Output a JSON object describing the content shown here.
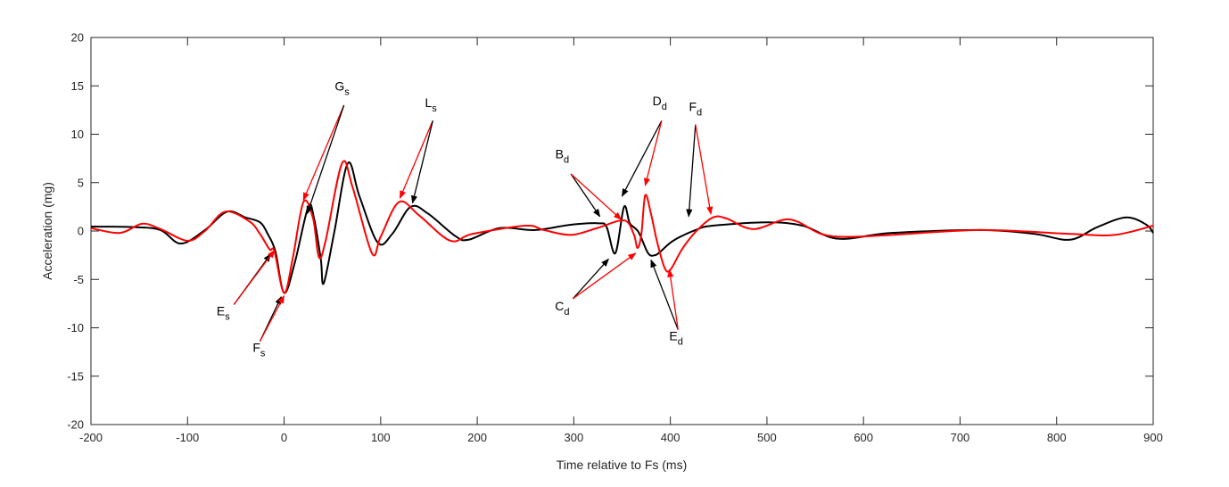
{
  "chart_data": {
    "type": "line",
    "title": "",
    "xlabel": "Time relative to Fs (ms)",
    "ylabel": "Acceleration (mg)",
    "xlim": [
      -200,
      900
    ],
    "ylim": [
      -20,
      20
    ],
    "xticks": [
      -200,
      -100,
      0,
      100,
      200,
      300,
      400,
      500,
      600,
      700,
      800,
      900
    ],
    "yticks": [
      -20,
      -15,
      -10,
      -5,
      0,
      5,
      10,
      15,
      20
    ],
    "grid": false,
    "series": [
      {
        "name": "black",
        "color": "#000000",
        "points": [
          [
            -200,
            0.46
          ],
          [
            -155,
            0.4
          ],
          [
            -128,
            0.1
          ],
          [
            -107,
            -1.3
          ],
          [
            -82,
            0.1
          ],
          [
            -59,
            2.0
          ],
          [
            -40,
            1.4
          ],
          [
            -25,
            0.9
          ],
          [
            -17,
            -0.3
          ],
          [
            -9,
            -2.1
          ],
          [
            0,
            -6.4
          ],
          [
            11,
            -3.3
          ],
          [
            25,
            2.5
          ],
          [
            31,
            1.3
          ],
          [
            38,
            -2.9
          ],
          [
            41,
            -5.4
          ],
          [
            52,
            -0.1
          ],
          [
            66,
            7.0
          ],
          [
            78,
            3.6
          ],
          [
            97,
            -1.2
          ],
          [
            112,
            -0.3
          ],
          [
            131,
            2.5
          ],
          [
            149,
            1.8
          ],
          [
            177,
            -0.5
          ],
          [
            191,
            -0.9
          ],
          [
            223,
            0.3
          ],
          [
            260,
            0.1
          ],
          [
            297,
            0.65
          ],
          [
            326,
            0.8
          ],
          [
            334,
            0.4
          ],
          [
            343,
            -2.3
          ],
          [
            352,
            2.5
          ],
          [
            358,
            0.8
          ],
          [
            367,
            -0.1
          ],
          [
            377,
            -2.3
          ],
          [
            384,
            -2.5
          ],
          [
            390,
            -2.1
          ],
          [
            403,
            -1.0
          ],
          [
            426,
            0.1
          ],
          [
            444,
            0.55
          ],
          [
            500,
            0.9
          ],
          [
            537,
            0.55
          ],
          [
            574,
            -0.8
          ],
          [
            629,
            -0.2
          ],
          [
            722,
            0.1
          ],
          [
            777,
            -0.3
          ],
          [
            814,
            -0.9
          ],
          [
            842,
            0.4
          ],
          [
            872,
            1.4
          ],
          [
            893,
            0.65
          ],
          [
            900,
            -0.2
          ]
        ]
      },
      {
        "name": "red",
        "color": "#ff0000",
        "points": [
          [
            -200,
            0.3
          ],
          [
            -170,
            -0.2
          ],
          [
            -147,
            0.75
          ],
          [
            -128,
            0.2
          ],
          [
            -100,
            -1.0
          ],
          [
            -82,
            0.0
          ],
          [
            -61,
            2.0
          ],
          [
            -36,
            1.0
          ],
          [
            -25,
            -0.3
          ],
          [
            -15,
            -1.9
          ],
          [
            -10,
            -2.1
          ],
          [
            0,
            -6.4
          ],
          [
            9,
            -2.8
          ],
          [
            20,
            3.0
          ],
          [
            30,
            1.3
          ],
          [
            36,
            -2.7
          ],
          [
            43,
            -1.0
          ],
          [
            60,
            7.0
          ],
          [
            71,
            4.5
          ],
          [
            91,
            -2.3
          ],
          [
            100,
            -0.6
          ],
          [
            119,
            3.0
          ],
          [
            140,
            1.6
          ],
          [
            172,
            -1.0
          ],
          [
            195,
            -0.3
          ],
          [
            250,
            0.55
          ],
          [
            269,
            0.1
          ],
          [
            297,
            -0.4
          ],
          [
            324,
            0.3
          ],
          [
            352,
            1.1
          ],
          [
            362,
            -0.3
          ],
          [
            366,
            -1.75
          ],
          [
            370,
            -0.3
          ],
          [
            374,
            3.7
          ],
          [
            380,
            1.75
          ],
          [
            386,
            -1.0
          ],
          [
            394,
            -3.8
          ],
          [
            400,
            -4.0
          ],
          [
            412,
            -1.9
          ],
          [
            426,
            -0.1
          ],
          [
            444,
            1.4
          ],
          [
            458,
            1.3
          ],
          [
            486,
            0.2
          ],
          [
            523,
            1.2
          ],
          [
            556,
            -0.3
          ],
          [
            584,
            -0.6
          ],
          [
            629,
            -0.4
          ],
          [
            722,
            0.1
          ],
          [
            814,
            -0.3
          ],
          [
            860,
            -0.4
          ],
          [
            900,
            0.55
          ]
        ]
      }
    ],
    "annotations": [
      {
        "label": "G",
        "sub": "s",
        "at": [
          60,
          14.5
        ],
        "tail": [
          62,
          13
        ],
        "arrows": [
          {
            "to": [
              20,
              3.2
            ],
            "color": "#ff0000"
          },
          {
            "to": [
              24,
              1.8
            ],
            "color": "#000000"
          }
        ]
      },
      {
        "label": "L",
        "sub": "s",
        "at": [
          152,
          12.8
        ],
        "tail": [
          154,
          11.4
        ],
        "arrows": [
          {
            "to": [
              120,
              3.4
            ],
            "color": "#ff0000"
          },
          {
            "to": [
              133,
              2.9
            ],
            "color": "#000000"
          }
        ]
      },
      {
        "label": "E",
        "sub": "s",
        "at": [
          -63,
          -8.7
        ],
        "tail": [
          -52,
          -7.6
        ],
        "arrows": [
          {
            "to": [
              -14,
              -2.4
            ],
            "color": "#000000"
          },
          {
            "to": [
              -10,
              -2.0
            ],
            "color": "#ff0000"
          }
        ]
      },
      {
        "label": "F",
        "sub": "s",
        "at": [
          -26,
          -12.5
        ],
        "tail": [
          -25,
          -11.4
        ],
        "arrows": [
          {
            "to": [
              -3,
              -6.8
            ],
            "color": "#000000"
          },
          {
            "to": [
              0,
              -6.7
            ],
            "color": "#ff0000"
          }
        ]
      },
      {
        "label": "B",
        "sub": "d",
        "at": [
          288,
          7.5
        ],
        "tail": [
          297,
          5.9
        ],
        "arrows": [
          {
            "to": [
              327,
              1.5
            ],
            "color": "#000000"
          },
          {
            "to": [
              349,
              1.2
            ],
            "color": "#ff0000"
          }
        ]
      },
      {
        "label": "C",
        "sub": "d",
        "at": [
          288,
          -8.2
        ],
        "tail": [
          299,
          -7.0
        ],
        "arrows": [
          {
            "to": [
              336,
              -2.9
            ],
            "color": "#000000"
          },
          {
            "to": [
              364,
              -2.3
            ],
            "color": "#ff0000"
          }
        ]
      },
      {
        "label": "D",
        "sub": "d",
        "at": [
          389,
          13.0
        ],
        "tail": [
          391,
          11.4
        ],
        "arrows": [
          {
            "to": [
              350,
              3.6
            ],
            "color": "#000000"
          },
          {
            "to": [
              374,
              4.7
            ],
            "color": "#ff0000"
          }
        ]
      },
      {
        "label": "E",
        "sub": "d",
        "at": [
          406,
          -11.3
        ],
        "tail": [
          408,
          -10.2
        ],
        "arrows": [
          {
            "to": [
              380,
              -3.0
            ],
            "color": "#000000"
          },
          {
            "to": [
              399,
              -4.0
            ],
            "color": "#ff0000"
          }
        ]
      },
      {
        "label": "F",
        "sub": "d",
        "at": [
          426,
          12.4
        ],
        "tail": [
          426,
          11.0
        ],
        "arrows": [
          {
            "to": [
              419,
              1.5
            ],
            "color": "#000000"
          },
          {
            "to": [
              442,
              1.75
            ],
            "color": "#ff0000"
          }
        ]
      }
    ]
  }
}
